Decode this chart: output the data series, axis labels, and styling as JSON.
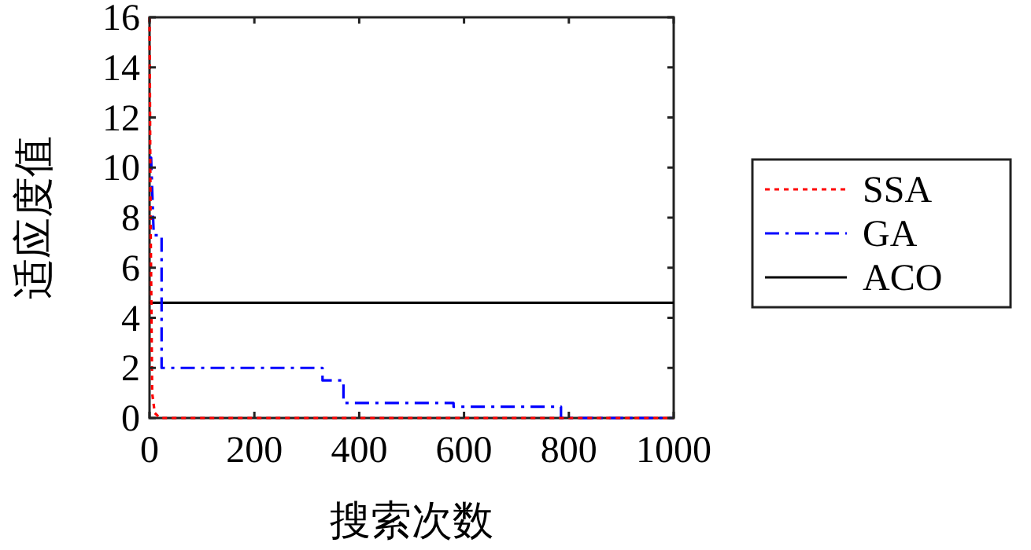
{
  "chart_data": {
    "type": "line",
    "xlabel": "搜索次数",
    "ylabel": "适应度值",
    "xlim": [
      0,
      1000
    ],
    "ylim": [
      0,
      16
    ],
    "xticks": [
      0,
      200,
      400,
      600,
      800,
      1000
    ],
    "yticks": [
      0,
      2,
      4,
      6,
      8,
      10,
      12,
      14,
      16
    ],
    "grid": false,
    "legend": "right",
    "marker": "none",
    "series": [
      {
        "name": "SSA",
        "color": "#ff0000",
        "line_style": "dotted",
        "x": [
          0,
          2,
          5,
          10,
          20,
          1000
        ],
        "values": [
          16,
          8,
          1,
          0.2,
          0,
          0
        ]
      },
      {
        "name": "GA",
        "color": "#0000ff",
        "line_style": "dashdot",
        "x": [
          0,
          3,
          8,
          20,
          23,
          23,
          330,
          330,
          370,
          370,
          580,
          580,
          785,
          785,
          1000
        ],
        "values": [
          10.4,
          10.4,
          7.3,
          7.3,
          7.3,
          2,
          2,
          1.5,
          1.5,
          0.6,
          0.6,
          0.45,
          0.45,
          0,
          0
        ]
      },
      {
        "name": "ACO",
        "color": "#000000",
        "line_style": "solid",
        "x": [
          0,
          1000
        ],
        "values": [
          4.6,
          4.6
        ]
      }
    ]
  }
}
